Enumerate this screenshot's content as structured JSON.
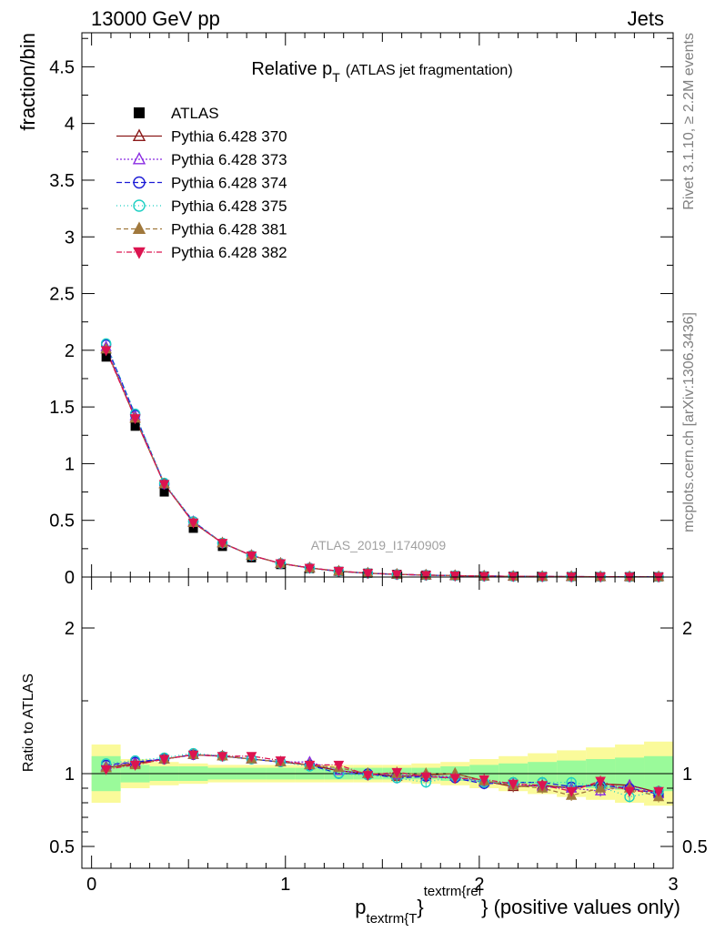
{
  "header": {
    "left": "13000 GeV pp",
    "right": "Jets"
  },
  "side_labels": {
    "rivet": "Rivet 3.1.10, ≥ 2.2M events",
    "mcplots": "mcplots.cern.ch [arXiv:1306.3436]"
  },
  "colors": {
    "p370": "#8b1a1a",
    "p373": "#8a2be2",
    "p374": "#1c1cd6",
    "p375": "#1ccfc3",
    "p381": "#a0783c",
    "p382": "#dc1450",
    "band_inner": "#9afa9a",
    "band_outer": "#fafa9a"
  },
  "chart_data": [
    {
      "type": "scatter",
      "panel": "main",
      "title_main": "Relative p",
      "title_sub": "T",
      "title_rest": "(ATLAS jet fragmentation)",
      "ylabel": "fraction/bin",
      "watermark": "ATLAS_2019_I1740909",
      "xlim": [
        -0.05,
        3.0
      ],
      "ylim": [
        0,
        4.8
      ],
      "yticks": [
        0,
        0.5,
        1,
        1.5,
        2,
        2.5,
        3,
        3.5,
        4,
        4.5
      ],
      "ytick_labels": [
        "0",
        "0.5",
        "1",
        "1.5",
        "2",
        "2.5",
        "3",
        "3.5",
        "4",
        "4.5"
      ],
      "x": [
        0.075,
        0.225,
        0.375,
        0.525,
        0.675,
        0.825,
        0.975,
        1.125,
        1.275,
        1.425,
        1.575,
        1.725,
        1.875,
        2.025,
        2.175,
        2.325,
        2.475,
        2.625,
        2.775,
        2.925
      ],
      "series": [
        {
          "name": "ATLAS",
          "key": "atlas",
          "marker": "square",
          "color": "#000000",
          "values": [
            1.94,
            1.33,
            0.75,
            0.43,
            0.27,
            0.17,
            0.11,
            0.075,
            0.05,
            0.034,
            0.024,
            0.017,
            0.012,
            0.009,
            0.007,
            0.005,
            0.004,
            0.003,
            0.0025,
            0.002
          ]
        },
        {
          "name": "Pythia 6.428 370",
          "key": "p370",
          "marker": "tri-open",
          "color": "#8b1a1a",
          "dash": "",
          "values": [
            2.01,
            1.4,
            0.82,
            0.48,
            0.3,
            0.19,
            0.12,
            0.08,
            0.05,
            0.034,
            0.023,
            0.017,
            0.012,
            0.009,
            0.006,
            0.0045,
            0.0036,
            0.003,
            0.0024,
            0.0018
          ]
        },
        {
          "name": "Pythia 6.428 373",
          "key": "p373",
          "marker": "tri-open",
          "color": "#8a2be2",
          "dash": "2,2",
          "values": [
            2.03,
            1.42,
            0.82,
            0.49,
            0.3,
            0.19,
            0.12,
            0.081,
            0.051,
            0.034,
            0.024,
            0.017,
            0.012,
            0.0085,
            0.0065,
            0.0046,
            0.0035,
            0.0028,
            0.0023,
            0.0017
          ]
        },
        {
          "name": "Pythia 6.428 374",
          "key": "p374",
          "marker": "circle-open",
          "color": "#1c1cd6",
          "dash": "6,3",
          "values": [
            2.05,
            1.43,
            0.82,
            0.49,
            0.3,
            0.19,
            0.12,
            0.08,
            0.05,
            0.034,
            0.023,
            0.017,
            0.012,
            0.0085,
            0.0065,
            0.0047,
            0.0036,
            0.0028,
            0.0022,
            0.0017
          ]
        },
        {
          "name": "Pythia 6.428 375",
          "key": "p375",
          "marker": "circle-open",
          "color": "#1ccfc3",
          "dash": "1,3",
          "values": [
            2.06,
            1.44,
            0.83,
            0.49,
            0.3,
            0.19,
            0.12,
            0.079,
            0.05,
            0.034,
            0.023,
            0.016,
            0.012,
            0.0085,
            0.0065,
            0.0047,
            0.0037,
            0.0028,
            0.0021,
            0.0017
          ]
        },
        {
          "name": "Pythia 6.428 381",
          "key": "p381",
          "marker": "tri-filled",
          "color": "#a0783c",
          "dash": "5,3",
          "values": [
            2.01,
            1.4,
            0.82,
            0.48,
            0.3,
            0.19,
            0.12,
            0.08,
            0.052,
            0.034,
            0.024,
            0.017,
            0.012,
            0.0085,
            0.0064,
            0.0044,
            0.0034,
            0.0027,
            0.0022,
            0.0017
          ]
        },
        {
          "name": "Pythia 6.428 382",
          "key": "p382",
          "marker": "tri-down-filled",
          "color": "#dc1450",
          "dash": "6,2,1,2",
          "values": [
            2.0,
            1.4,
            0.82,
            0.48,
            0.3,
            0.19,
            0.12,
            0.08,
            0.053,
            0.034,
            0.024,
            0.017,
            0.012,
            0.0085,
            0.0064,
            0.0046,
            0.0035,
            0.0028,
            0.0022,
            0.0018
          ]
        }
      ],
      "legend_position": "top-left"
    },
    {
      "type": "scatter",
      "panel": "ratio",
      "ylabel": "Ratio to ATLAS",
      "xlabel_main": "p",
      "xlabel_sub": "textrm{T",
      "xlabel_sup": "textrm{rel",
      "xlabel_close": "}",
      "xlabel_rest": "} (positive values only)",
      "xlim": [
        -0.05,
        3.0
      ],
      "ylim": [
        0.35,
        2.35
      ],
      "xticks": [
        0,
        1,
        2,
        3
      ],
      "xtick_labels": [
        "0",
        "1",
        "2",
        "3"
      ],
      "yticks": [
        0.5,
        1,
        2
      ],
      "ytick_labels": [
        "0.5",
        "1",
        "2"
      ],
      "x_edges": [
        0.0,
        0.15,
        0.3,
        0.45,
        0.6,
        0.75,
        0.9,
        1.05,
        1.2,
        1.35,
        1.5,
        1.65,
        1.8,
        1.95,
        2.1,
        2.25,
        2.4,
        2.55,
        2.7,
        2.85,
        3.0
      ],
      "band_inner_half": [
        0.12,
        0.06,
        0.05,
        0.05,
        0.04,
        0.04,
        0.04,
        0.04,
        0.04,
        0.04,
        0.04,
        0.04,
        0.05,
        0.06,
        0.07,
        0.08,
        0.09,
        0.1,
        0.11,
        0.12
      ],
      "band_outer_half": [
        0.2,
        0.1,
        0.08,
        0.07,
        0.06,
        0.06,
        0.06,
        0.06,
        0.06,
        0.06,
        0.06,
        0.07,
        0.08,
        0.1,
        0.12,
        0.14,
        0.16,
        0.18,
        0.2,
        0.22
      ],
      "x": [
        0.075,
        0.225,
        0.375,
        0.525,
        0.675,
        0.825,
        0.975,
        1.125,
        1.275,
        1.425,
        1.575,
        1.725,
        1.875,
        2.025,
        2.175,
        2.325,
        2.475,
        2.625,
        2.775,
        2.925
      ],
      "series": [
        {
          "name": "Pythia 6.428 370",
          "key": "p370",
          "values": [
            1.04,
            1.07,
            1.1,
            1.13,
            1.12,
            1.1,
            1.08,
            1.06,
            1.02,
            1.0,
            0.98,
            0.99,
            1.0,
            0.95,
            0.91,
            0.92,
            0.9,
            0.93,
            0.92,
            0.87
          ]
        },
        {
          "name": "Pythia 6.428 373",
          "key": "p373",
          "values": [
            1.05,
            1.08,
            1.1,
            1.13,
            1.12,
            1.1,
            1.08,
            1.08,
            1.02,
            1.0,
            0.99,
            0.98,
            0.98,
            0.94,
            0.93,
            0.91,
            0.9,
            0.88,
            0.92,
            0.86
          ]
        },
        {
          "name": "Pythia 6.428 374",
          "key": "p374",
          "values": [
            1.06,
            1.08,
            1.1,
            1.13,
            1.12,
            1.1,
            1.08,
            1.06,
            1.0,
            1.0,
            0.97,
            0.98,
            0.97,
            0.93,
            0.94,
            0.94,
            0.91,
            0.92,
            0.9,
            0.86
          ]
        },
        {
          "name": "Pythia 6.428 375",
          "key": "p375",
          "values": [
            1.07,
            1.09,
            1.11,
            1.14,
            1.12,
            1.1,
            1.08,
            1.05,
            1.0,
            0.99,
            0.97,
            0.94,
            0.98,
            0.94,
            0.94,
            0.94,
            0.94,
            0.91,
            0.84,
            0.88
          ]
        },
        {
          "name": "Pythia 6.428 381",
          "key": "p381",
          "values": [
            1.04,
            1.06,
            1.1,
            1.13,
            1.12,
            1.1,
            1.08,
            1.06,
            1.04,
            1.0,
            1.0,
            1.0,
            1.0,
            0.95,
            0.92,
            0.9,
            0.85,
            0.9,
            0.9,
            0.84
          ]
        },
        {
          "name": "Pythia 6.428 382",
          "key": "p382",
          "values": [
            1.03,
            1.06,
            1.1,
            1.13,
            1.12,
            1.12,
            1.09,
            1.06,
            1.06,
            0.99,
            1.01,
            0.98,
            0.97,
            0.96,
            0.93,
            0.92,
            0.88,
            0.95,
            0.88,
            0.88
          ]
        }
      ]
    }
  ]
}
